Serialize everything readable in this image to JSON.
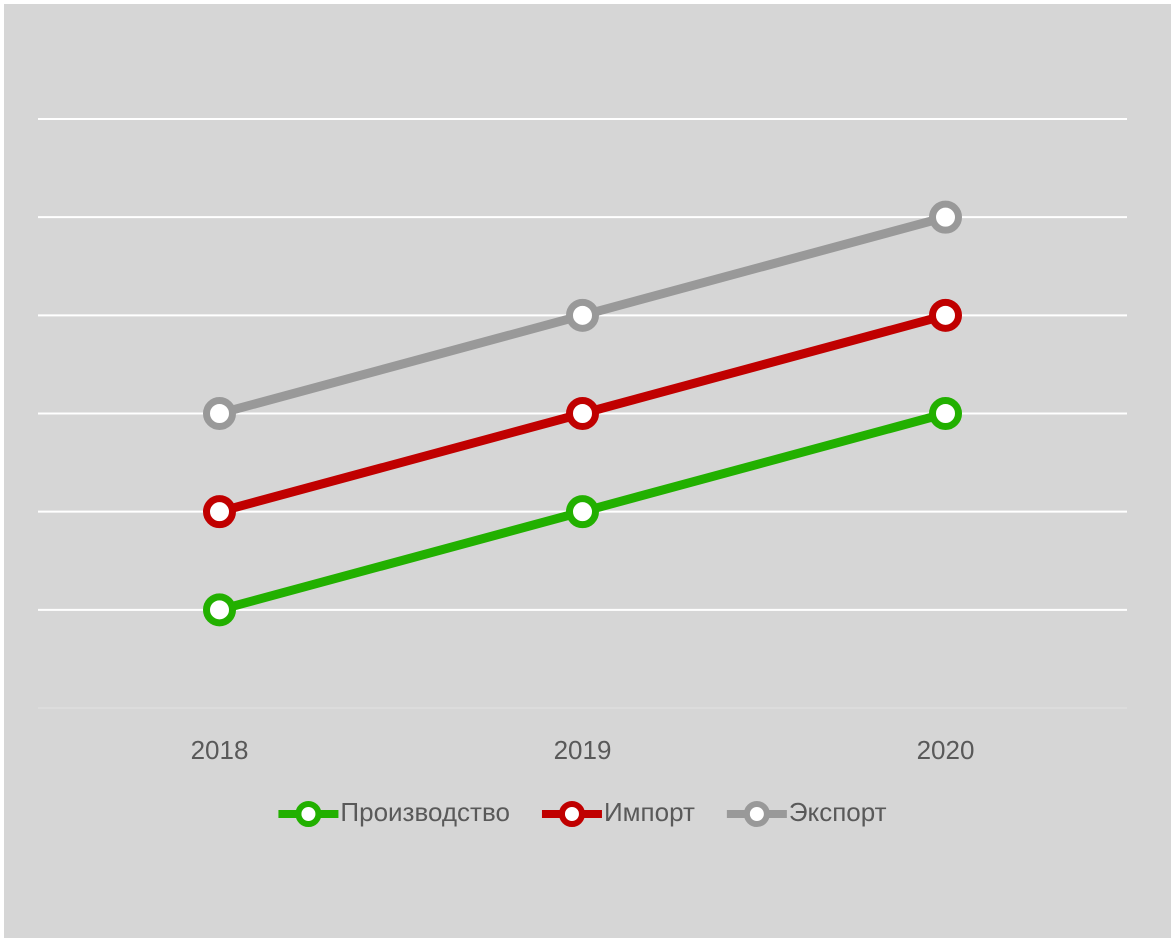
{
  "chart_data": {
    "type": "line",
    "categories": [
      "2018",
      "2019",
      "2020"
    ],
    "series": [
      {
        "name": "Производство",
        "color": "#22b000",
        "values": [
          1,
          2,
          3
        ]
      },
      {
        "name": "Импорт",
        "color": "#c00000",
        "values": [
          2,
          3,
          4
        ]
      },
      {
        "name": "Экспорт",
        "color": "#999999",
        "values": [
          3,
          4,
          5
        ]
      }
    ],
    "ylim": [
      0,
      6
    ],
    "yticks": [
      1,
      2,
      3,
      4,
      5,
      6
    ],
    "grid": true,
    "legend": "bottom"
  }
}
